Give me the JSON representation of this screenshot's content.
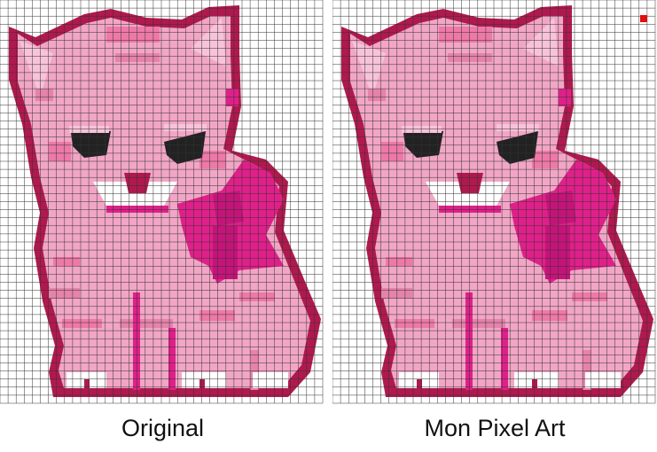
{
  "captions": {
    "original": "Original",
    "mine": "Mon Pixel Art"
  },
  "subject": "kitten-with-bow-icon",
  "palette": {
    "outline": "#b0194e",
    "body": "#f2a6c6",
    "body_light": "#f8c3da",
    "body_dark": "#e583ab",
    "stripe": "#ee79a8",
    "bow": "#e0208a",
    "bow_dark": "#c4147a",
    "eye": "#222222",
    "white": "#ffffff",
    "grid_line": "#333333",
    "marker": "#e01010"
  }
}
